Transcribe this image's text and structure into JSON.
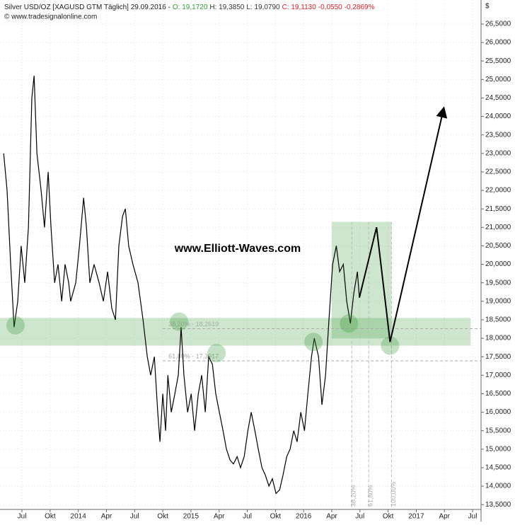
{
  "chart_data": {
    "type": "line",
    "title": "Silver USD/OZ [XAGUSD GTM  Täglich] 29.09.2016 -",
    "quote": [
      {
        "text": "O: 19,1720",
        "color": "#2ca02c"
      },
      {
        "text": "H: 19,3850",
        "color": "#333333"
      },
      {
        "text": "L: 19,0790",
        "color": "#333333"
      },
      {
        "text": "C: 19,1130",
        "color": "#e0202a"
      },
      {
        "text": "-0,0550",
        "color": "#e0202a"
      },
      {
        "text": "-0,2869%",
        "color": "#e0202a"
      }
    ],
    "source": "© www.tradesignalonline.com",
    "watermark": "www.Elliott-Waves.com",
    "y_axis_label": "$",
    "xlim": [
      -0.78,
      16.3
    ],
    "ylim": [
      13.37,
      27.15
    ],
    "xticks": [
      {
        "value": 0,
        "label": "Jul"
      },
      {
        "value": 1,
        "label": "Okt"
      },
      {
        "value": 2,
        "label": "2014"
      },
      {
        "value": 3,
        "label": "Apr"
      },
      {
        "value": 4,
        "label": "Jul"
      },
      {
        "value": 5,
        "label": "Okt"
      },
      {
        "value": 6,
        "label": "2015"
      },
      {
        "value": 7,
        "label": "Apr"
      },
      {
        "value": 8,
        "label": "Jul"
      },
      {
        "value": 9,
        "label": "Okt"
      },
      {
        "value": 10,
        "label": "2016"
      },
      {
        "value": 11,
        "label": "Apr"
      },
      {
        "value": 12,
        "label": "Jul"
      },
      {
        "value": 13,
        "label": "Okt"
      },
      {
        "value": 14,
        "label": "2017"
      },
      {
        "value": 15,
        "label": "Apr"
      },
      {
        "value": 16,
        "label": "Jul"
      }
    ],
    "yticks": [
      {
        "value": 13.5,
        "label": "13,5000"
      },
      {
        "value": 14,
        "label": "14,0000"
      },
      {
        "value": 14.5,
        "label": "14,5000"
      },
      {
        "value": 15,
        "label": "15,0000"
      },
      {
        "value": 15.5,
        "label": "15,5000"
      },
      {
        "value": 16,
        "label": "16,0000"
      },
      {
        "value": 16.5,
        "label": "16,5000"
      },
      {
        "value": 17,
        "label": "17,0000"
      },
      {
        "value": 17.5,
        "label": "17,5000"
      },
      {
        "value": 18,
        "label": "18,0000"
      },
      {
        "value": 18.5,
        "label": "18,5000"
      },
      {
        "value": 19,
        "label": "19,0000"
      },
      {
        "value": 19.5,
        "label": "19,5000"
      },
      {
        "value": 20,
        "label": "20,0000"
      },
      {
        "value": 20.5,
        "label": "20,5000"
      },
      {
        "value": 21,
        "label": "21,0000"
      },
      {
        "value": 21.5,
        "label": "21,5000"
      },
      {
        "value": 22,
        "label": "22,0000"
      },
      {
        "value": 22.5,
        "label": "22,5000"
      },
      {
        "value": 23,
        "label": "23,0000"
      },
      {
        "value": 23.5,
        "label": "23,5000"
      },
      {
        "value": 24,
        "label": "24,0000"
      },
      {
        "value": 24.5,
        "label": "24,5000"
      },
      {
        "value": 25,
        "label": "25,0000"
      },
      {
        "value": 25.5,
        "label": "25,5000"
      },
      {
        "value": 26,
        "label": "26,0000"
      },
      {
        "value": 26.5,
        "label": "26,5000"
      }
    ],
    "grid": true,
    "series": [
      {
        "name": "Silver USD/OZ",
        "color": "#000000",
        "x": [
          -0.65,
          -0.53,
          -0.4,
          -0.28,
          -0.15,
          -0.03,
          0.1,
          0.23,
          0.35,
          0.43,
          0.53,
          0.68,
          0.8,
          0.93,
          1.03,
          1.16,
          1.28,
          1.41,
          1.53,
          1.66,
          1.73,
          1.91,
          2.04,
          2.19,
          2.29,
          2.41,
          2.56,
          2.74,
          2.89,
          3.04,
          3.19,
          3.32,
          3.44,
          3.57,
          3.67,
          3.79,
          3.94,
          4.12,
          4.3,
          4.45,
          4.57,
          4.7,
          4.82,
          4.9,
          5.0,
          5.1,
          5.18,
          5.3,
          5.43,
          5.55,
          5.65,
          5.75,
          5.88,
          6.01,
          6.13,
          6.26,
          6.38,
          6.51,
          6.63,
          6.76,
          6.88,
          7.01,
          7.14,
          7.26,
          7.39,
          7.51,
          7.64,
          7.76,
          7.89,
          8.02,
          8.14,
          8.27,
          8.39,
          8.52,
          8.64,
          8.77,
          8.89,
          9.02,
          9.15,
          9.27,
          9.4,
          9.52,
          9.65,
          9.77,
          9.9,
          10.03,
          10.15,
          10.28,
          10.38,
          10.53,
          10.65,
          10.78,
          10.9,
          11.03,
          11.16,
          11.28,
          11.41,
          11.53,
          11.66,
          11.78,
          11.91,
          11.98
        ],
        "values": [
          23.0,
          22.0,
          20.0,
          18.3,
          19.0,
          20.5,
          19.5,
          21.0,
          24.5,
          25.1,
          23.0,
          22.0,
          21.0,
          22.5,
          21.0,
          19.5,
          20.0,
          19.0,
          20.0,
          19.5,
          19.0,
          19.5,
          20.5,
          21.8,
          21.0,
          19.5,
          20.0,
          19.5,
          19.0,
          19.8,
          18.8,
          18.5,
          20.5,
          21.3,
          21.5,
          20.5,
          20.0,
          19.5,
          18.5,
          17.5,
          17.0,
          17.5,
          16.0,
          15.2,
          16.5,
          15.5,
          17.0,
          16.0,
          16.5,
          17.0,
          18.3,
          17.0,
          16.0,
          16.5,
          15.5,
          16.5,
          17.0,
          16.0,
          17.5,
          17.3,
          16.5,
          16.0,
          15.5,
          15.0,
          14.7,
          14.6,
          14.8,
          14.5,
          14.8,
          15.5,
          16.0,
          15.5,
          15.0,
          14.5,
          14.3,
          14.0,
          14.2,
          13.8,
          13.9,
          14.3,
          14.8,
          15.0,
          15.5,
          15.2,
          16.0,
          15.5,
          16.5,
          17.5,
          18.0,
          17.5,
          16.2,
          17.0,
          18.5,
          20.0,
          20.5,
          19.8,
          20.0,
          19.0,
          18.4,
          19.2,
          19.8,
          19.1
        ]
      }
    ],
    "zones": [
      {
        "x": [
          -0.78,
          15.93
        ],
        "y": [
          17.8,
          18.55
        ]
      },
      {
        "x": [
          11.0,
          13.12
        ],
        "y": [
          18.0,
          21.15
        ]
      }
    ],
    "circles": {
      "x": [
        -0.23,
        5.58,
        6.91,
        10.35,
        11.61,
        13.07
      ],
      "y": [
        18.35,
        18.45,
        17.6,
        17.9,
        18.4,
        17.8
      ]
    },
    "projection": {
      "x": [
        11.98,
        12.59,
        13.07,
        14.97
      ],
      "y": [
        19.1,
        21.0,
        17.9,
        24.2
      ]
    },
    "fib_lines": [
      {
        "value": 18.26,
        "label": "38,20% - 18,2619"
      },
      {
        "value": 17.39,
        "label": "61,80% - 17,3917"
      }
    ],
    "fib_times": [
      {
        "value": 11.71,
        "label": "38,20%"
      },
      {
        "value": 12.31,
        "label": "61,80%"
      },
      {
        "value": 13.12,
        "label": "100,00%"
      }
    ]
  }
}
